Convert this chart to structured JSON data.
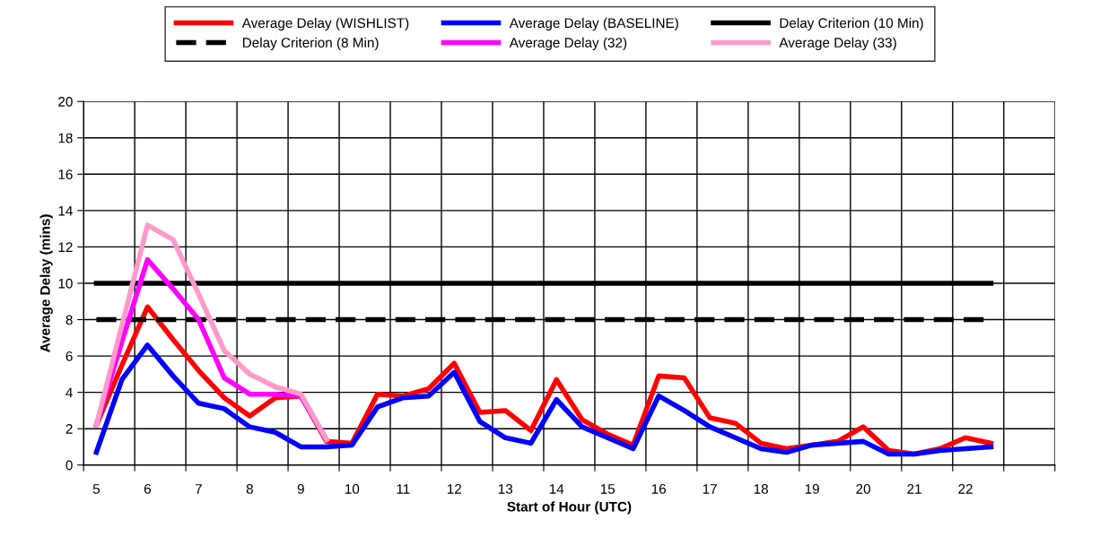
{
  "chart_data": {
    "type": "line",
    "xlabel": "Start of Hour (UTC)",
    "ylabel": "Average Delay (mins)",
    "x": [
      5,
      5.5,
      6,
      6.5,
      7,
      7.5,
      8,
      8.5,
      9,
      9.5,
      10,
      10.5,
      11,
      11.5,
      12,
      12.5,
      13,
      13.5,
      14,
      14.5,
      15,
      15.5,
      16,
      16.5,
      17,
      17.5,
      18,
      18.5,
      19,
      19.5,
      20,
      20.5,
      21,
      21.5,
      22,
      22.5
    ],
    "series": [
      {
        "name": "Average Delay (WISHLIST)",
        "color": "#ff0000",
        "values": [
          2.2,
          5.5,
          8.7,
          6.9,
          5.2,
          3.7,
          2.7,
          3.7,
          3.8,
          1.3,
          1.2,
          3.9,
          3.8,
          4.2,
          5.6,
          2.9,
          3.0,
          1.9,
          4.7,
          2.5,
          1.7,
          1.1,
          4.9,
          4.8,
          2.6,
          2.3,
          1.2,
          0.9,
          1.1,
          1.3,
          2.1,
          0.8,
          0.6,
          0.9,
          1.5,
          1.2
        ]
      },
      {
        "name": "Average Delay (BASELINE)",
        "color": "#0000ff",
        "values": [
          0.7,
          4.7,
          6.6,
          4.9,
          3.4,
          3.1,
          2.1,
          1.8,
          1.0,
          1.0,
          1.1,
          3.2,
          3.7,
          3.8,
          5.1,
          2.4,
          1.5,
          1.2,
          3.6,
          2.1,
          1.5,
          0.9,
          3.8,
          3.0,
          2.1,
          1.5,
          0.9,
          0.7,
          1.1,
          1.2,
          1.3,
          0.6,
          0.6,
          0.8,
          0.9,
          1.0
        ]
      },
      {
        "name": "Delay Criterion (10 Min)",
        "color": "#000000",
        "line_style": "solid",
        "values": [
          10,
          10,
          10,
          10,
          10,
          10,
          10,
          10,
          10,
          10,
          10,
          10,
          10,
          10,
          10,
          10,
          10,
          10,
          10,
          10,
          10,
          10,
          10,
          10,
          10,
          10,
          10,
          10,
          10,
          10,
          10,
          10,
          10,
          10,
          10,
          10
        ]
      },
      {
        "name": "Delay Criterion (8 Min)",
        "color": "#000000",
        "line_style": "dashed",
        "values": [
          8,
          8,
          8,
          8,
          8,
          8,
          8,
          8,
          8,
          8,
          8,
          8,
          8,
          8,
          8,
          8,
          8,
          8,
          8,
          8,
          8,
          8,
          8,
          8,
          8,
          8,
          8,
          8,
          8,
          8,
          8,
          8,
          8,
          8,
          8,
          8
        ]
      },
      {
        "name": "Average Delay (32)",
        "color": "#ff00ff",
        "x": [
          5,
          5.5,
          6,
          6.5,
          7,
          7.5,
          8,
          8.5,
          9,
          9.5
        ],
        "values": [
          2.2,
          6.8,
          11.3,
          9.7,
          8.0,
          4.8,
          3.9,
          3.9,
          3.8,
          1.4
        ]
      },
      {
        "name": "Average Delay (33)",
        "color": "#ff99cc",
        "x": [
          5,
          5.5,
          6,
          6.5,
          7,
          7.5,
          8,
          8.5,
          9,
          9.5
        ],
        "values": [
          2.2,
          7.7,
          13.2,
          12.4,
          9.4,
          6.3,
          5.0,
          4.3,
          3.9,
          1.4
        ]
      }
    ],
    "xlim": [
      4.75,
      23.75
    ],
    "xticks": [
      {
        "value": 4.75,
        "label": null
      },
      {
        "value": 5.75,
        "label": null
      },
      {
        "value": 6.75,
        "label": null
      },
      {
        "value": 7.75,
        "label": null
      },
      {
        "value": 8.75,
        "label": null
      },
      {
        "value": 9.75,
        "label": null
      },
      {
        "value": 10.75,
        "label": null
      },
      {
        "value": 11.75,
        "label": null
      },
      {
        "value": 12.75,
        "label": null
      },
      {
        "value": 13.75,
        "label": null
      },
      {
        "value": 14.75,
        "label": null
      },
      {
        "value": 15.75,
        "label": null
      },
      {
        "value": 16.75,
        "label": null
      },
      {
        "value": 17.75,
        "label": null
      },
      {
        "value": 18.75,
        "label": null
      },
      {
        "value": 19.75,
        "label": null
      },
      {
        "value": 20.75,
        "label": null
      },
      {
        "value": 21.75,
        "label": null
      },
      {
        "value": 22.75,
        "label": null
      },
      {
        "value": 23.75,
        "label": null
      },
      {
        "value": 5,
        "label": "5"
      },
      {
        "value": 6,
        "label": "6"
      },
      {
        "value": 7,
        "label": "7"
      },
      {
        "value": 8,
        "label": "8"
      },
      {
        "value": 9,
        "label": "9"
      },
      {
        "value": 10,
        "label": "10"
      },
      {
        "value": 11,
        "label": "11"
      },
      {
        "value": 12,
        "label": "12"
      },
      {
        "value": 13,
        "label": "13"
      },
      {
        "value": 14,
        "label": "14"
      },
      {
        "value": 15,
        "label": "15"
      },
      {
        "value": 16,
        "label": "16"
      },
      {
        "value": 17,
        "label": "17"
      },
      {
        "value": 18,
        "label": "18"
      },
      {
        "value": 19,
        "label": "19"
      },
      {
        "value": 20,
        "label": "20"
      },
      {
        "value": 21,
        "label": "21"
      },
      {
        "value": 22,
        "label": "22"
      }
    ],
    "ylim": [
      0,
      20
    ],
    "yticks": [
      0,
      2,
      4,
      6,
      8,
      10,
      12,
      14,
      16,
      18,
      20
    ],
    "grid": true,
    "legend": "top",
    "marker": "none",
    "line_style": "solid"
  }
}
